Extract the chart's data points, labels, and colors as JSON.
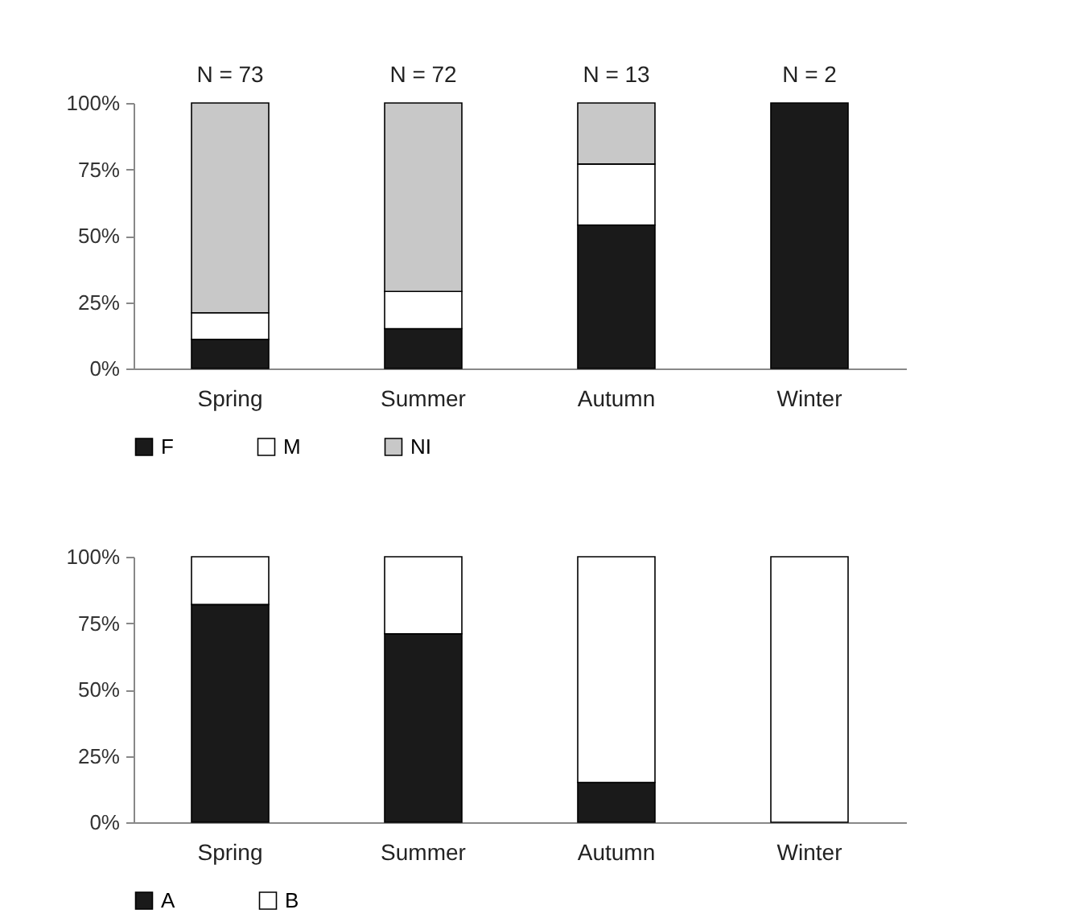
{
  "chart_data": [
    {
      "type": "bar",
      "stacked": true,
      "categories": [
        "Spring",
        "Summer",
        "Autumn",
        "Winter"
      ],
      "series": [
        {
          "name": "F",
          "color": "#1a1a1a",
          "values": [
            11,
            15,
            54,
            100
          ]
        },
        {
          "name": "M",
          "color": "#ffffff",
          "values": [
            10,
            14,
            23,
            0
          ]
        },
        {
          "name": "NI",
          "color": "#c8c8c8",
          "values": [
            79,
            71,
            23,
            0
          ]
        }
      ],
      "ylim": [
        0,
        100
      ],
      "yticks": [
        {
          "value": 0,
          "label": "0%"
        },
        {
          "value": 25,
          "label": "25%"
        },
        {
          "value": 50,
          "label": "50%"
        },
        {
          "value": 75,
          "label": "75%"
        },
        {
          "value": 100,
          "label": "100%"
        }
      ],
      "annotations": [
        {
          "text": "N = 73",
          "x": "Spring",
          "y": 100
        },
        {
          "text": "N = 72",
          "x": "Summer",
          "y": 100
        },
        {
          "text": "N = 13",
          "x": "Autumn",
          "y": 100
        },
        {
          "text": "N = 2",
          "x": "Winter",
          "y": 100
        }
      ],
      "grid": false,
      "legend": "bottom"
    },
    {
      "type": "bar",
      "stacked": true,
      "categories": [
        "Spring",
        "Summer",
        "Autumn",
        "Winter"
      ],
      "series": [
        {
          "name": "A",
          "color": "#1a1a1a",
          "values": [
            82,
            71,
            15,
            0
          ]
        },
        {
          "name": "B",
          "color": "#ffffff",
          "values": [
            18,
            29,
            85,
            100
          ]
        }
      ],
      "ylim": [
        0,
        100
      ],
      "yticks": [
        {
          "value": 0,
          "label": "0%"
        },
        {
          "value": 25,
          "label": "25%"
        },
        {
          "value": 50,
          "label": "50%"
        },
        {
          "value": 75,
          "label": "75%"
        },
        {
          "value": 100,
          "label": "100%"
        }
      ],
      "grid": false,
      "legend": "bottom"
    }
  ]
}
